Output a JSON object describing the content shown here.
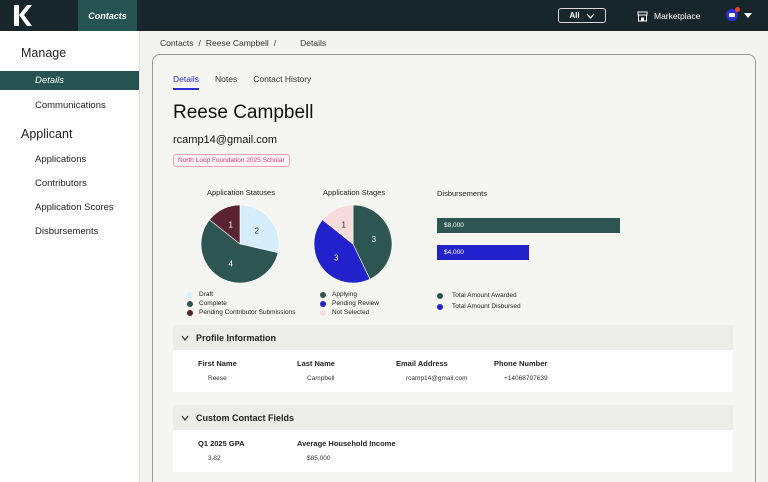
{
  "topbar": {
    "nav_tab": "Contacts",
    "all_select": "All",
    "marketplace": "Marketplace"
  },
  "sidebar": {
    "manage_heading": "Manage",
    "manage_items": [
      "Details",
      "Communications"
    ],
    "applicant_heading": "Applicant",
    "applicant_items": [
      "Applications",
      "Contributors",
      "Application Scores",
      "Disbursements"
    ]
  },
  "breadcrumb": {
    "items": [
      "Contacts",
      "Reese Campbell",
      "Details"
    ],
    "separator": "/"
  },
  "tabs": [
    "Details",
    "Notes",
    "Contact History"
  ],
  "contact": {
    "name": "Reese Campbell",
    "email": "rcamp14@gmail.com",
    "badge": "North Loop Foundation 2025 Scholar"
  },
  "colors": {
    "dark_teal": "#2d5552",
    "light_blue": "#d6eefb",
    "maroon": "#5a2333",
    "royal_blue": "#2222cc",
    "blush": "#f8dcdc",
    "accent": "#2d2fd0"
  },
  "chart_data": [
    {
      "type": "pie",
      "title": "Application Statuses",
      "categories": [
        "Draft",
        "Complete",
        "Pending Contributor Submissions"
      ],
      "values": [
        2,
        4,
        1
      ],
      "colors": [
        "#d6eefb",
        "#2d5552",
        "#5a2333"
      ]
    },
    {
      "type": "pie",
      "title": "Application Stages",
      "categories": [
        "Applying",
        "Pending Review",
        "Not Selected"
      ],
      "values": [
        3,
        3,
        1
      ],
      "colors": [
        "#2d5552",
        "#2222cc",
        "#f8dcdc"
      ]
    },
    {
      "type": "bar",
      "title": "Disbursements",
      "categories": [
        "Total Amount Awarded",
        "Total Amount Disbursed"
      ],
      "values": [
        8000,
        4000
      ],
      "labels": [
        "$8,000",
        "$4,000"
      ],
      "colors": [
        "#2d5552",
        "#2222cc"
      ]
    }
  ],
  "profile": {
    "heading": "Profile Information",
    "fields": [
      {
        "label": "First Name",
        "value": "Reese"
      },
      {
        "label": "Last Name",
        "value": "Campbell"
      },
      {
        "label": "Email Address",
        "value": "rcamp14@gmail.com"
      },
      {
        "label": "Phone Number",
        "value": "+14068797639"
      }
    ]
  },
  "custom_fields": {
    "heading": "Custom Contact Fields",
    "fields": [
      {
        "label": "Q1 2025 GPA",
        "value": "3.82"
      },
      {
        "label": "Average Household Income",
        "value": "$85,000"
      }
    ]
  }
}
